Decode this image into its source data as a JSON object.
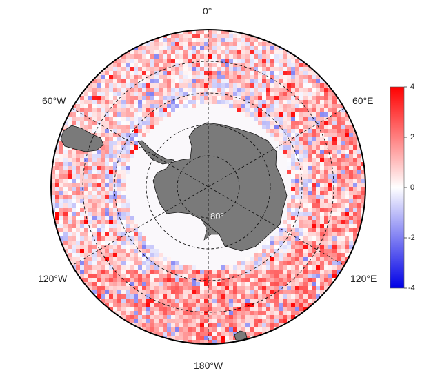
{
  "map": {
    "projection": "south-polar-stereographic",
    "longitude_labels": {
      "top": "0°",
      "upper_left": "60°W",
      "upper_right": "60°E",
      "lower_left": "120°W",
      "lower_right": "120°E",
      "bottom": "180°W"
    },
    "latitude_label": "80°",
    "land_color": "#7a7a7a",
    "ocean_background": "#faf8fb"
  },
  "colorbar": {
    "ticks": [
      "4",
      "2",
      "0",
      "-2",
      "-4"
    ],
    "vmin": -4,
    "vmax": 4,
    "colors": [
      "#0000e6",
      "#ffffff",
      "#ff0000"
    ]
  }
}
